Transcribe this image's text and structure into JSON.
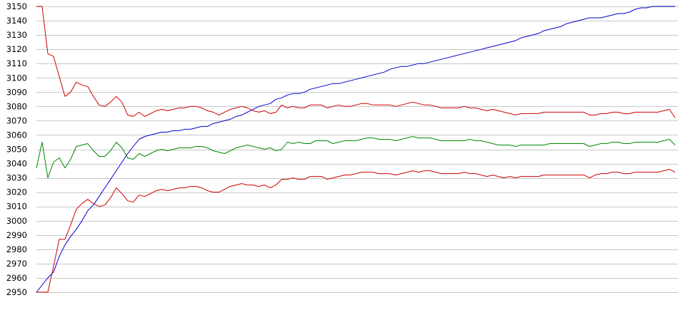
{
  "chart_data": {
    "type": "line",
    "title": "",
    "xlabel": "",
    "ylabel": "",
    "ylim": [
      2950,
      3150
    ],
    "yticks": [
      2950,
      2960,
      2970,
      2980,
      2990,
      3000,
      3010,
      3020,
      3030,
      3040,
      3050,
      3060,
      3070,
      3080,
      3090,
      3100,
      3110,
      3120,
      3130,
      3140,
      3150
    ],
    "grid": "horizontal",
    "legend": "none",
    "x": [
      0,
      1,
      2,
      3,
      4,
      5,
      6,
      7,
      8,
      9,
      10,
      11,
      12,
      13,
      14,
      15,
      16,
      17,
      18,
      19,
      20,
      21,
      22,
      23,
      24,
      25,
      26,
      27,
      28,
      29,
      30,
      31,
      32,
      33,
      34,
      35,
      36,
      37,
      38,
      39,
      40,
      41,
      42,
      43,
      44,
      45,
      46,
      47,
      48,
      49,
      50,
      51,
      52,
      53,
      54,
      55,
      56,
      57,
      58,
      59,
      60,
      61,
      62,
      63,
      64,
      65,
      66,
      67,
      68,
      69,
      70,
      71,
      72,
      73,
      74,
      75,
      76,
      77,
      78,
      79,
      80,
      81,
      82,
      83,
      84,
      85,
      86,
      87,
      88,
      89,
      90,
      91,
      92,
      93,
      94,
      95,
      96,
      97,
      98,
      99,
      100,
      101,
      102,
      103,
      104,
      105,
      106,
      107,
      108,
      109,
      110,
      111,
      112
    ],
    "series": [
      {
        "color": "#0000cc",
        "values": [
          2950,
          2955,
          2960,
          2964,
          2975,
          2983,
          2989,
          2994,
          3000,
          3007,
          3011,
          3017,
          3023,
          3029,
          3035,
          3041,
          3047,
          3052,
          3057,
          3059,
          3060,
          3061,
          3062,
          3062,
          3063,
          3063,
          3064,
          3064,
          3065,
          3066,
          3066,
          3068,
          3069,
          3070,
          3071,
          3073,
          3074,
          3076,
          3078,
          3080,
          3081,
          3082,
          3085,
          3086,
          3088,
          3089,
          3089,
          3090,
          3092,
          3093,
          3094,
          3095,
          3096,
          3096,
          3097,
          3098,
          3099,
          3100,
          3101,
          3102,
          3103,
          3104,
          3106,
          3107,
          3108,
          3108,
          3109,
          3110,
          3110,
          3111,
          3112,
          3113,
          3114,
          3115,
          3116,
          3117,
          3118,
          3119,
          3120,
          3121,
          3122,
          3123,
          3124,
          3125,
          3126,
          3128,
          3129,
          3130,
          3131,
          3133,
          3134,
          3135,
          3136,
          3138,
          3139,
          3140,
          3141,
          3142,
          3142,
          3142,
          3143,
          3144,
          3145,
          3145,
          3146,
          3148,
          3149,
          3149,
          3150,
          3150,
          3150,
          3150,
          3150
        ]
      },
      {
        "color": "#cc0000",
        "values": [
          3150,
          3150,
          3117,
          3115,
          3101,
          3087,
          3090,
          3097,
          3095,
          3094,
          3087,
          3081,
          3080,
          3083,
          3087,
          3083,
          3074,
          3073,
          3076,
          3073,
          3075,
          3077,
          3078,
          3077,
          3078,
          3079,
          3079,
          3080,
          3080,
          3079,
          3077,
          3076,
          3074,
          3076,
          3078,
          3079,
          3080,
          3079,
          3077,
          3076,
          3077,
          3075,
          3076,
          3081,
          3079,
          3080,
          3079,
          3079,
          3081,
          3081,
          3081,
          3079,
          3080,
          3081,
          3080,
          3080,
          3081,
          3082,
          3082,
          3081,
          3081,
          3081,
          3081,
          3080,
          3081,
          3082,
          3083,
          3082,
          3081,
          3081,
          3080,
          3079,
          3079,
          3079,
          3079,
          3080,
          3079,
          3079,
          3078,
          3077,
          3078,
          3077,
          3076,
          3075,
          3074,
          3075,
          3075,
          3075,
          3075,
          3076,
          3076,
          3076,
          3076,
          3076,
          3076,
          3076,
          3076,
          3074,
          3074,
          3075,
          3075,
          3076,
          3076,
          3075,
          3075,
          3076,
          3076,
          3076,
          3076,
          3076,
          3077,
          3078,
          3072
        ]
      },
      {
        "color": "#008800",
        "values": [
          3037,
          3055,
          3030,
          3041,
          3044,
          3037,
          3043,
          3052,
          3053,
          3054,
          3049,
          3045,
          3045,
          3049,
          3055,
          3051,
          3044,
          3043,
          3047,
          3045,
          3047,
          3049,
          3050,
          3049,
          3050,
          3051,
          3051,
          3051,
          3052,
          3052,
          3051,
          3049,
          3048,
          3047,
          3049,
          3051,
          3052,
          3053,
          3052,
          3051,
          3050,
          3051,
          3049,
          3050,
          3055,
          3054,
          3055,
          3054,
          3054,
          3056,
          3056,
          3056,
          3054,
          3055,
          3056,
          3056,
          3056,
          3057,
          3058,
          3058,
          3057,
          3057,
          3057,
          3056,
          3057,
          3058,
          3059,
          3058,
          3058,
          3058,
          3057,
          3056,
          3056,
          3056,
          3056,
          3056,
          3057,
          3056,
          3056,
          3055,
          3054,
          3053,
          3053,
          3053,
          3052,
          3053,
          3053,
          3053,
          3053,
          3053,
          3054,
          3054,
          3054,
          3054,
          3054,
          3054,
          3054,
          3052,
          3053,
          3054,
          3054,
          3055,
          3055,
          3054,
          3054,
          3055,
          3055,
          3055,
          3055,
          3055,
          3056,
          3057,
          3053
        ]
      },
      {
        "color": "#cc0000",
        "values": [
          2950,
          2950,
          2950,
          2968,
          2987,
          2987,
          2997,
          3008,
          3012,
          3015,
          3012,
          3010,
          3011,
          3016,
          3023,
          3019,
          3014,
          3013,
          3018,
          3017,
          3019,
          3021,
          3022,
          3021,
          3022,
          3023,
          3023,
          3024,
          3024,
          3023,
          3021,
          3020,
          3020,
          3022,
          3024,
          3025,
          3026,
          3025,
          3025,
          3024,
          3025,
          3023,
          3025,
          3029,
          3029,
          3030,
          3029,
          3029,
          3031,
          3031,
          3031,
          3029,
          3030,
          3031,
          3032,
          3032,
          3033,
          3034,
          3034,
          3034,
          3033,
          3033,
          3033,
          3032,
          3033,
          3034,
          3035,
          3034,
          3035,
          3035,
          3034,
          3033,
          3033,
          3033,
          3033,
          3034,
          3033,
          3033,
          3032,
          3031,
          3032,
          3031,
          3030,
          3031,
          3030,
          3031,
          3031,
          3031,
          3031,
          3032,
          3032,
          3032,
          3032,
          3032,
          3032,
          3032,
          3032,
          3030,
          3032,
          3033,
          3033,
          3034,
          3034,
          3033,
          3033,
          3034,
          3034,
          3034,
          3034,
          3034,
          3035,
          3036,
          3034
        ]
      }
    ]
  }
}
